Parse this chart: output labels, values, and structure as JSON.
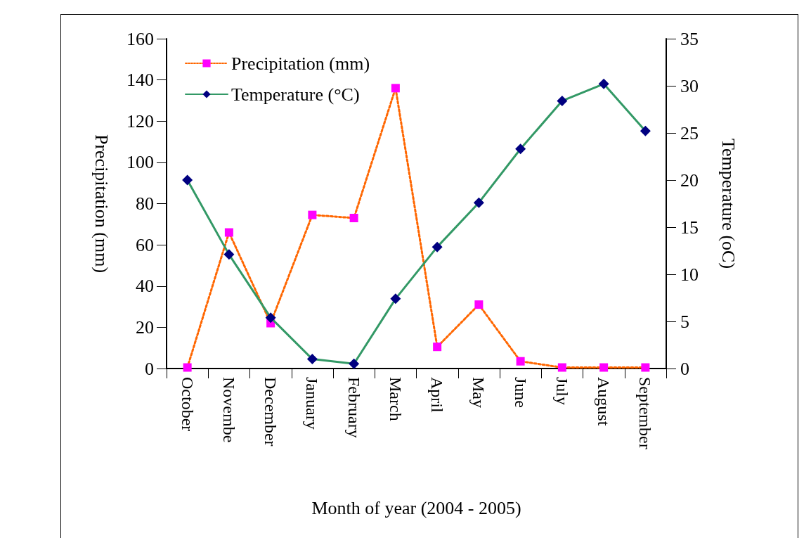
{
  "chart_data": {
    "type": "line",
    "categories": [
      "October",
      "Novembe",
      "December",
      "January",
      "February",
      "March",
      "April",
      "May",
      "June",
      "July",
      "August",
      "September"
    ],
    "xlabel": "Month of year (2004 - 2005)",
    "ylabel": "Precipitation (mm)",
    "y2label": "Temperature (oC)",
    "series": [
      {
        "name": "Precipitation (mm)",
        "color": "#ff6600",
        "colors": [
          "#ff00ff",
          "#ff00ff",
          "#ff00ff",
          "#ff00ff",
          "#ff00ff",
          "#ff00ff",
          "#ff00ff",
          "#ff00ff",
          "#ff00ff",
          "#ff00ff",
          "#ff00ff",
          "#ff00ff"
        ],
        "marker": "square",
        "line_style": "dotted",
        "values": [
          0.5,
          66,
          22,
          74.5,
          73,
          136,
          10.5,
          31,
          3.5,
          0.5,
          0.5,
          0.5
        ]
      },
      {
        "name": "Temperature (°C)",
        "color": "#339966",
        "colors": [
          "#000080",
          "#000080",
          "#000080",
          "#000080",
          "#000080",
          "#000080",
          "#000080",
          "#000080",
          "#000080",
          "#000080",
          "#000080",
          "#000080"
        ],
        "marker": "diamond",
        "line_style": "solid",
        "axis": "y2",
        "values": [
          20.0,
          12.1,
          5.4,
          1.0,
          0.5,
          7.4,
          12.9,
          17.6,
          23.3,
          28.4,
          30.2,
          25.2
        ]
      }
    ],
    "ylim": [
      0,
      160
    ],
    "yticks": [
      0,
      20,
      40,
      60,
      80,
      100,
      120,
      140,
      160
    ],
    "y2lim": [
      0,
      35
    ],
    "y2ticks": [
      0,
      5,
      10,
      15,
      20,
      25,
      30,
      35
    ],
    "grid": false,
    "legend": "top left"
  }
}
